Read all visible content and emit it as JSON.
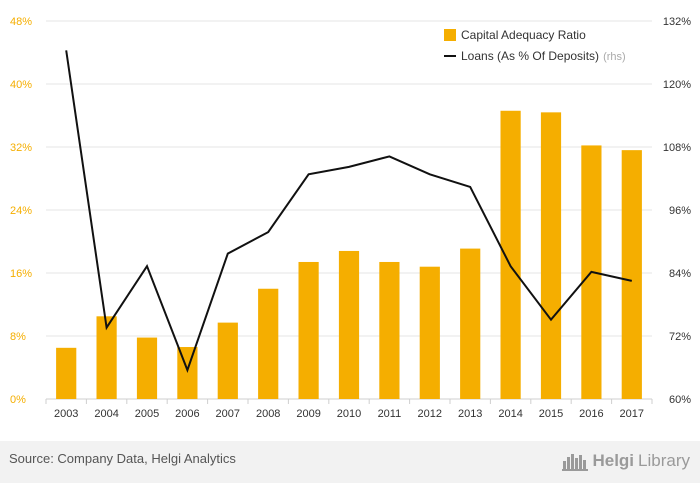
{
  "chart_data": {
    "type": "bar",
    "title": "",
    "categories": [
      "2003",
      "2004",
      "2005",
      "2006",
      "2007",
      "2008",
      "2009",
      "2010",
      "2011",
      "2012",
      "2013",
      "2014",
      "2015",
      "2016",
      "2017"
    ],
    "series": [
      {
        "name": "Capital Adequacy Ratio",
        "type": "bar",
        "axis": "left",
        "color": "#f5ae00",
        "values": [
          6.5,
          10.5,
          7.8,
          6.6,
          9.7,
          14.0,
          17.4,
          18.8,
          17.4,
          16.8,
          19.1,
          36.6,
          36.4,
          32.2,
          31.6
        ]
      },
      {
        "name": "Loans (As % Of Deposits)",
        "type": "line",
        "axis": "right",
        "color": "#111111",
        "values": [
          126.4,
          73.6,
          85.3,
          65.5,
          87.7,
          91.8,
          102.8,
          104.2,
          106.2,
          102.8,
          100.4,
          85.3,
          75.1,
          84.2,
          82.5
        ]
      }
    ],
    "y_left": {
      "min": 0,
      "max": 48,
      "ticks": [
        "0%",
        "8%",
        "16%",
        "24%",
        "32%",
        "40%",
        "48%"
      ],
      "tick_values": [
        0,
        8,
        16,
        24,
        32,
        40,
        48
      ],
      "color": "#f5ae00"
    },
    "y_right": {
      "min": 60,
      "max": 132,
      "ticks": [
        "60%",
        "72%",
        "84%",
        "96%",
        "108%",
        "120%",
        "132%"
      ],
      "tick_values": [
        60,
        72,
        84,
        96,
        108,
        120,
        132
      ],
      "color": "#333333"
    },
    "legend": {
      "position": "top-right",
      "items": [
        "Capital Adequacy Ratio",
        "Loans (As % Of Deposits)"
      ],
      "rhs_suffix": "(rhs)"
    },
    "grid": true
  },
  "footer": {
    "source": "Source: Company Data, Helgi Analytics",
    "logo_a": "Helgi",
    "logo_b": "Library"
  }
}
